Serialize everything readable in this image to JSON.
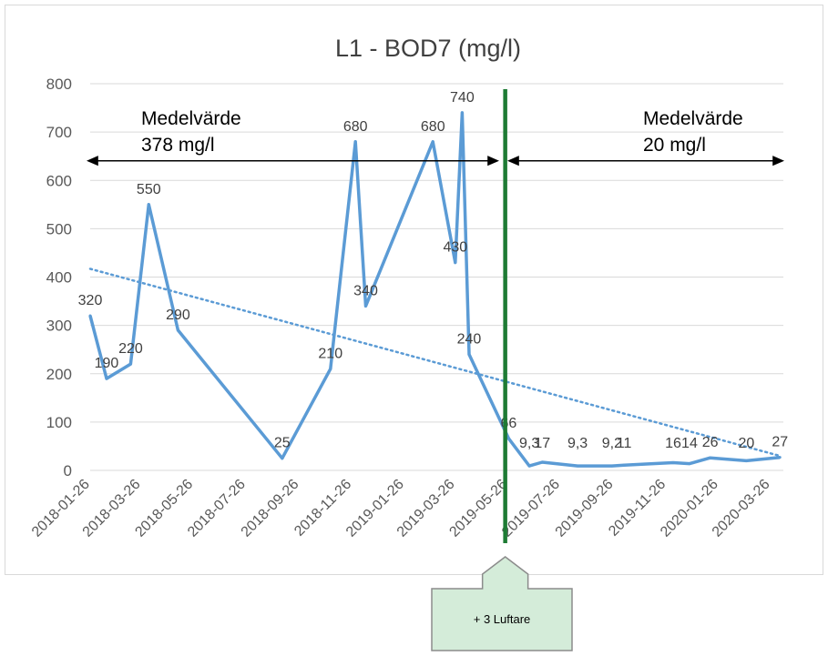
{
  "chart_data": {
    "type": "line",
    "title": "L1 - BOD7 (mg/l)",
    "xlabel": "",
    "ylabel": "",
    "ylim": [
      0,
      800
    ],
    "yticks": [
      0,
      100,
      200,
      300,
      400,
      500,
      600,
      700,
      800
    ],
    "grid": true,
    "x_axis_type": "date",
    "xlim": [
      "2018-01-26",
      "2020-04-10"
    ],
    "xticks": [
      "2018-01-26",
      "2018-03-26",
      "2018-05-26",
      "2018-07-26",
      "2018-09-26",
      "2018-11-26",
      "2019-01-26",
      "2019-03-26",
      "2019-05-26",
      "2019-07-26",
      "2019-09-26",
      "2019-11-26",
      "2020-01-26",
      "2020-03-26"
    ],
    "series": [
      {
        "values": [
          {
            "x": "2018-01-26",
            "y": 320,
            "label": "320"
          },
          {
            "x": "2018-02-14",
            "y": 190,
            "label": "190"
          },
          {
            "x": "2018-03-14",
            "y": 220,
            "label": "220"
          },
          {
            "x": "2018-04-04",
            "y": 550,
            "label": "550"
          },
          {
            "x": "2018-05-08",
            "y": 290,
            "label": "290"
          },
          {
            "x": "2018-09-06",
            "y": 25,
            "label": "25"
          },
          {
            "x": "2018-11-01",
            "y": 210,
            "label": "210"
          },
          {
            "x": "2018-11-30",
            "y": 680,
            "label": "680"
          },
          {
            "x": "2018-12-12",
            "y": 340,
            "label": "340"
          },
          {
            "x": "2019-02-28",
            "y": 680,
            "label": "680"
          },
          {
            "x": "2019-03-26",
            "y": 430,
            "label": "430"
          },
          {
            "x": "2019-04-03",
            "y": 740,
            "label": "740"
          },
          {
            "x": "2019-04-11",
            "y": 240,
            "label": "240"
          },
          {
            "x": "2019-05-27",
            "y": 66,
            "label": "66"
          },
          {
            "x": "2019-06-20",
            "y": 9.3,
            "label": "9,3"
          },
          {
            "x": "2019-07-05",
            "y": 17,
            "label": "17"
          },
          {
            "x": "2019-08-15",
            "y": 9.3,
            "label": "9,3"
          },
          {
            "x": "2019-09-24",
            "y": 9.2,
            "label": "9,2"
          },
          {
            "x": "2019-10-08",
            "y": 11,
            "label": "11"
          },
          {
            "x": "2019-12-04",
            "y": 16,
            "label": "16"
          },
          {
            "x": "2019-12-23",
            "y": 14,
            "label": "14"
          },
          {
            "x": "2020-01-16",
            "y": 26,
            "label": "26"
          },
          {
            "x": "2020-02-27",
            "y": 20,
            "label": "20"
          },
          {
            "x": "2020-04-06",
            "y": 27,
            "label": "27"
          }
        ]
      }
    ],
    "trendline": {
      "style": "dotted",
      "from": {
        "x": "2018-01-26",
        "y": 417
      },
      "to": {
        "x": "2020-04-06",
        "y": 30
      }
    },
    "vertical_marker": {
      "x": "2019-05-23",
      "color": "#1e7b34"
    },
    "annotations": [
      {
        "lines": [
          "Medelvärde",
          "378 mg/l"
        ],
        "range": [
          "2018-01-26",
          "2019-05-23"
        ],
        "y": 650
      },
      {
        "lines": [
          "Medelvärde",
          "20 mg/l"
        ],
        "range": [
          "2019-05-23",
          "2020-04-10"
        ],
        "y": 650
      }
    ],
    "callout": {
      "text": "+ 3 Luftare",
      "fill": "#d4ecd9"
    },
    "colors": {
      "series": "#5b9bd5",
      "trend": "#5b9bd5",
      "grid": "#d9d9d9",
      "axis_text": "#595959"
    }
  }
}
